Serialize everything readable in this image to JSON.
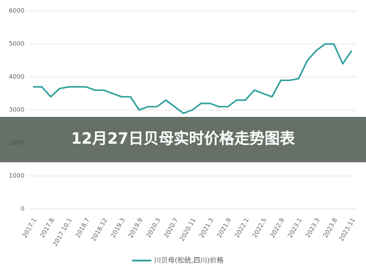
{
  "chart_data": {
    "type": "line",
    "title": "12月27日贝母实时价格走势图表",
    "categories": [
      "2017.1",
      null,
      "2017.8",
      null,
      "2017.10.1",
      null,
      "2018.7",
      null,
      "2018.12",
      null,
      "2019.3",
      null,
      "2019.9",
      null,
      "2020.3",
      null,
      "2020.7",
      null,
      "2020.11",
      null,
      "2021.3",
      null,
      "2021.9",
      null,
      "2022.1",
      null,
      "2022.5",
      null,
      "2022.9",
      null,
      "2023.1",
      null,
      "2023.3",
      null,
      "2023.8",
      null,
      "2023.11"
    ],
    "series": [
      {
        "name": "川贝母(松统,四川)价格",
        "color": "#2a9d9a",
        "values": [
          3700,
          3700,
          3400,
          3650,
          3700,
          3700,
          3700,
          3600,
          3600,
          3500,
          3400,
          3400,
          3000,
          3100,
          3100,
          3300,
          3100,
          2900,
          3000,
          3200,
          3200,
          3100,
          3100,
          3300,
          3300,
          3600,
          3500,
          3400,
          3900,
          3900,
          3950,
          4500,
          4800,
          5000,
          5000,
          4400,
          4800
        ]
      }
    ],
    "ylim": [
      0,
      6000
    ],
    "yticks": [
      0,
      1000,
      2000,
      3000,
      4000,
      5000,
      6000
    ],
    "grid": true
  }
}
